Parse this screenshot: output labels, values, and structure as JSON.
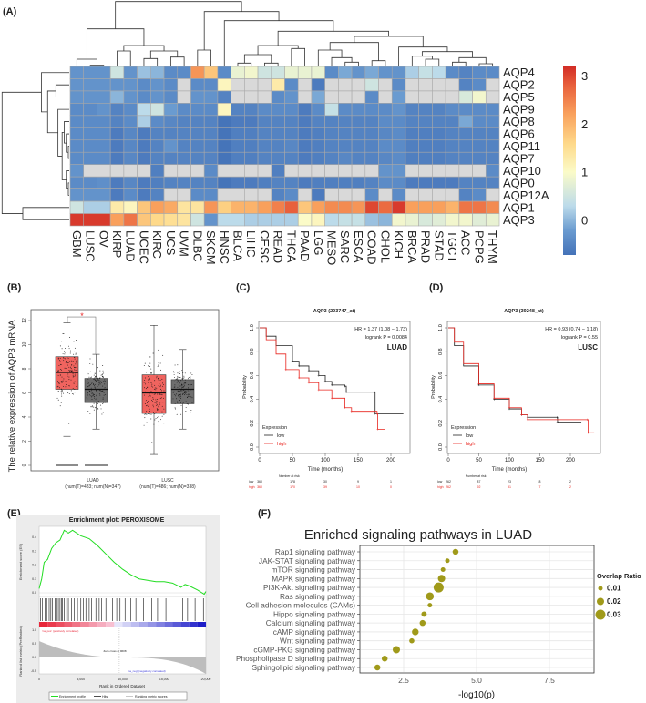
{
  "panels": {
    "A": "(A)",
    "B": "(B)",
    "C": "(C)",
    "D": "(D)",
    "E": "(E)",
    "F": "(F)"
  },
  "chart_data": [
    {
      "type": "heatmap",
      "rows": [
        "AQP4",
        "AQP2",
        "AQP5",
        "AQP9",
        "AQP8",
        "AQP6",
        "AQP11",
        "AQP7",
        "AQP10",
        "AQP0",
        "AQP12A",
        "AQP1",
        "AQP3"
      ],
      "columns": [
        "GBM",
        "LUSC",
        "OV",
        "KIRP",
        "LUAD",
        "UCEC",
        "KIRC",
        "UCS",
        "UVM",
        "DLBC",
        "SKCM",
        "HNSC",
        "BLCA",
        "LIHC",
        "CESC",
        "READ",
        "THCA",
        "PAAD",
        "LGG",
        "MESO",
        "SARC",
        "ESCA",
        "COAD",
        "CHOL",
        "KICH",
        "BRCA",
        "PRAD",
        "STAD",
        "TGCT",
        "ACC",
        "PCPG",
        "THYM"
      ],
      "values": [
        [
          -0.3,
          -0.3,
          -0.3,
          0.5,
          -0.3,
          0.1,
          0,
          -0.4,
          -0.4,
          2.3,
          1.8,
          -0.4,
          0.8,
          0.9,
          0.5,
          0.5,
          0.8,
          0.8,
          0.8,
          -0.4,
          -0.1,
          -0.3,
          -0.1,
          -0.3,
          -0.3,
          0.2,
          0.4,
          0.3,
          -0.4,
          -0.5,
          -0.4,
          -0.4
        ],
        [
          -0.3,
          -0.3,
          -0.3,
          -0.3,
          -0.3,
          -0.4,
          -0.3,
          -0.4,
          null,
          -0.4,
          -0.4,
          1.1,
          null,
          null,
          null,
          1.3,
          -0.4,
          null,
          -0.6,
          null,
          null,
          null,
          0.5,
          null,
          -0.4,
          null,
          null,
          null,
          null,
          -0.5,
          -0.4,
          null
        ],
        [
          -0.3,
          -0.3,
          -0.3,
          0,
          -0.3,
          -0.4,
          -0.3,
          -0.4,
          null,
          -0.3,
          -0.3,
          -0.5,
          null,
          null,
          null,
          -0.4,
          -0.3,
          null,
          -0.1,
          null,
          null,
          null,
          -0.4,
          null,
          -0.2,
          null,
          null,
          null,
          null,
          0.6,
          0.9,
          null
        ],
        [
          -0.4,
          -0.4,
          -0.3,
          -0.5,
          -0.4,
          0.3,
          0.5,
          -0.2,
          -0.4,
          -0.4,
          -0.4,
          1.1,
          -0.5,
          -0.5,
          -0.4,
          -0.4,
          -0.4,
          -0.6,
          -0.4,
          0.4,
          -0.4,
          -0.4,
          -0.4,
          -0.4,
          -0.3,
          -0.5,
          -0.5,
          -0.5,
          -0.4,
          -0.4,
          -0.4,
          -0.4
        ],
        [
          -0.4,
          -0.4,
          -0.4,
          -0.5,
          -0.4,
          0.2,
          -0.4,
          -0.45,
          -0.5,
          -0.5,
          -0.5,
          -0.7,
          -0.6,
          -0.6,
          -0.5,
          -0.5,
          -0.5,
          -0.6,
          -0.5,
          -0.5,
          -0.5,
          -0.5,
          -0.5,
          -0.4,
          -0.4,
          -0.5,
          -0.5,
          -0.5,
          -0.5,
          -0.1,
          -0.4,
          -0.4
        ],
        [
          -0.4,
          -0.4,
          -0.4,
          -0.6,
          -0.45,
          -0.6,
          -0.5,
          -0.5,
          -0.5,
          -0.5,
          -0.5,
          -0.7,
          -0.55,
          -0.55,
          -0.5,
          -0.5,
          -0.5,
          -0.6,
          -0.55,
          -0.5,
          -0.5,
          -0.5,
          -0.5,
          -0.45,
          -0.4,
          -0.55,
          -0.55,
          -0.55,
          -0.5,
          -0.5,
          -0.5,
          -0.5
        ],
        [
          -0.4,
          -0.4,
          -0.4,
          -0.6,
          -0.45,
          -0.6,
          -0.5,
          -0.3,
          -0.5,
          -0.5,
          -0.5,
          -0.7,
          -0.55,
          -0.55,
          -0.5,
          -0.5,
          -0.45,
          -0.6,
          -0.55,
          -0.5,
          -0.5,
          -0.5,
          -0.5,
          -0.4,
          -0.4,
          -0.55,
          -0.55,
          -0.55,
          -0.5,
          -0.5,
          -0.5,
          -0.5
        ],
        [
          -0.4,
          -0.4,
          -0.4,
          -0.6,
          -0.45,
          -0.6,
          -0.5,
          -0.5,
          -0.5,
          -0.5,
          -0.5,
          -0.7,
          -0.55,
          -0.55,
          -0.5,
          -0.5,
          -0.5,
          -0.6,
          -0.55,
          -0.5,
          -0.45,
          -0.5,
          -0.5,
          -0.45,
          -0.4,
          -0.55,
          -0.55,
          -0.55,
          -0.5,
          -0.5,
          -0.5,
          -0.5
        ],
        [
          -0.3,
          null,
          null,
          null,
          null,
          null,
          -0.55,
          null,
          null,
          null,
          -0.4,
          null,
          null,
          null,
          null,
          -0.55,
          null,
          null,
          null,
          null,
          null,
          null,
          null,
          -0.3,
          -0.3,
          null,
          null,
          null,
          null,
          null,
          null,
          -0.4
        ],
        [
          -0.4,
          -0.4,
          -0.35,
          -0.6,
          -0.45,
          -0.6,
          -0.55,
          -0.5,
          -0.5,
          -0.5,
          -0.5,
          -0.7,
          -0.6,
          -0.6,
          -0.55,
          -0.5,
          -0.5,
          -0.6,
          -0.55,
          -0.55,
          -0.55,
          -0.55,
          -0.5,
          -0.4,
          -0.4,
          -0.6,
          -0.6,
          -0.6,
          -0.6,
          -0.5,
          -0.5,
          -0.5
        ],
        [
          -0.3,
          -0.3,
          -0.3,
          -0.6,
          -0.4,
          -0.6,
          -0.5,
          null,
          null,
          -0.4,
          -0.4,
          null,
          null,
          null,
          null,
          -0.5,
          -0.4,
          null,
          -0.6,
          null,
          null,
          null,
          -0.4,
          null,
          -0.4,
          null,
          null,
          null,
          null,
          -0.5,
          -0.4,
          null
        ],
        [
          0.5,
          0.2,
          0.2,
          1.3,
          1.1,
          1.8,
          2.2,
          2.1,
          1.4,
          1.4,
          2.3,
          1.7,
          2.0,
          2.0,
          2.2,
          2.5,
          2.8,
          1.8,
          2.2,
          2.4,
          2.4,
          2.3,
          3.0,
          2.7,
          3.1,
          2.2,
          2.2,
          2.2,
          2.0,
          2.6,
          2.6,
          2.4
        ],
        [
          3.1,
          3.1,
          3.1,
          2.2,
          2.6,
          1.8,
          1.6,
          1.5,
          1.4,
          0.5,
          -0.3,
          0.3,
          0.3,
          0.2,
          0.2,
          0.2,
          0.2,
          1.0,
          1.1,
          0.3,
          0.4,
          0.4,
          0.1,
          0.0,
          0.9,
          0.8,
          0.6,
          0.7,
          0.9,
          0.9,
          0.7,
          0.8
        ]
      ],
      "colorbar_ticks": [
        "0",
        "1",
        "2",
        "3"
      ],
      "colorbar_range": [
        -0.72,
        3.2
      ],
      "missing_color": "#d9d9d9"
    },
    {
      "type": "box",
      "ylabel": "The relative expression of AQP3 mRNA",
      "yticks": [
        "0",
        "2",
        "4",
        "6",
        "8",
        "10",
        "12"
      ],
      "ylim": [
        0,
        12.5
      ],
      "groups": [
        {
          "label": "LUAD",
          "sub": "(num(T)=483; num(N)=347)",
          "boxes": [
            {
              "name": "Tumor",
              "color": "#f0645f",
              "min": 2.4,
              "q1": 6.3,
              "median": 7.7,
              "q3": 9.0,
              "max": 11.8
            },
            {
              "name": "Normal",
              "color": "#6e6e6e",
              "min": 3.0,
              "q1": 5.2,
              "median": 6.3,
              "q3": 7.2,
              "max": 9.2
            }
          ],
          "significance": "*"
        },
        {
          "label": "LUSC",
          "sub": "(num(T)=486; num(N)=338)",
          "boxes": [
            {
              "name": "Tumor",
              "color": "#f0645f",
              "min": 0.9,
              "q1": 4.3,
              "median": 6.0,
              "q3": 7.5,
              "max": 11.6
            },
            {
              "name": "Normal",
              "color": "#6e6e6e",
              "min": 3.0,
              "q1": 5.1,
              "median": 6.3,
              "q3": 7.1,
              "max": 9.6
            }
          ]
        }
      ]
    },
    {
      "type": "line",
      "title": "AQP3 (203747_at)",
      "hr": "HR = 1.37 (1.08 − 1.73)",
      "logrank": "logrank P = 0.0084",
      "cohort": "LUAD",
      "xlabel": "Time (months)",
      "ylabel": "Probability",
      "xticks": [
        "0",
        "50",
        "100",
        "150",
        "200"
      ],
      "yticks": [
        "0.0",
        "0.2",
        "0.4",
        "0.6",
        "0.8",
        "1.0"
      ],
      "legend_title": "Expression",
      "series": [
        {
          "name": "low",
          "color": "#222222",
          "x": [
            0,
            10,
            25,
            50,
            60,
            75,
            90,
            100,
            110,
            130,
            132,
            175,
            176,
            219
          ],
          "y": [
            1,
            0.93,
            0.85,
            0.72,
            0.68,
            0.64,
            0.6,
            0.55,
            0.52,
            0.51,
            0.46,
            0.46,
            0.28,
            0.28
          ]
        },
        {
          "name": "high",
          "color": "#e8251f",
          "x": [
            0,
            10,
            25,
            40,
            60,
            75,
            90,
            110,
            130,
            140,
            179,
            180,
            191
          ],
          "y": [
            1,
            0.9,
            0.78,
            0.65,
            0.58,
            0.54,
            0.48,
            0.41,
            0.33,
            0.3,
            0.28,
            0.15,
            0.15
          ]
        }
      ],
      "risk_title": "Number at risk",
      "risk": [
        {
          "label": "low",
          "values": [
            "360",
            "178",
            "30",
            "9",
            "1"
          ]
        },
        {
          "label": "high",
          "values": [
            "360",
            "170",
            "39",
            "10",
            "0"
          ]
        }
      ]
    },
    {
      "type": "line",
      "title": "AQP3 (39248_at)",
      "hr": "HR = 0.93 (0.74 − 1.18)",
      "logrank": "logrank P = 0.55",
      "cohort": "LUSC",
      "xlabel": "Time (months)",
      "ylabel": "Probability",
      "xticks": [
        "0",
        "50",
        "100",
        "150",
        "200"
      ],
      "yticks": [
        "0.0",
        "0.2",
        "0.4",
        "0.6",
        "0.8",
        "1.0"
      ],
      "legend_title": "Expression",
      "series": [
        {
          "name": "low",
          "color": "#222222",
          "x": [
            0,
            10,
            25,
            50,
            75,
            100,
            120,
            130,
            178,
            179,
            218
          ],
          "y": [
            1,
            0.85,
            0.68,
            0.52,
            0.4,
            0.32,
            0.27,
            0.25,
            0.25,
            0.21,
            0.21
          ]
        },
        {
          "name": "high",
          "color": "#e8251f",
          "x": [
            0,
            10,
            25,
            50,
            75,
            100,
            120,
            130,
            228,
            229,
            239
          ],
          "y": [
            1,
            0.88,
            0.7,
            0.53,
            0.41,
            0.33,
            0.27,
            0.23,
            0.23,
            0.12,
            0.12
          ]
        }
      ],
      "risk_title": "Number at risk",
      "risk": [
        {
          "label": "low",
          "values": [
            "262",
            "87",
            "23",
            "8",
            "2"
          ]
        },
        {
          "label": "high",
          "values": [
            "262",
            "92",
            "31",
            "7",
            "2"
          ]
        }
      ]
    },
    {
      "type": "line",
      "title": "Enrichment plot: PEROXISOME",
      "ylabel_top": "Enrichment score (ES)",
      "ylabel_bottom": "Ranked list metric (PreRanked)",
      "xlabel": "Rank in Ordered Dataset",
      "xticks": [
        "0",
        "5,000",
        "10,000",
        "15,000",
        "20,000"
      ],
      "es_yticks": [
        "0.0",
        "0.1",
        "0.2",
        "0.3",
        "0.4"
      ],
      "metric_yticks": [
        "1.0",
        "0.5",
        "0.0",
        "-0.5"
      ],
      "es_curve": {
        "rank": [
          0,
          300,
          600,
          1000,
          1500,
          2000,
          2500,
          3000,
          3500,
          4000,
          5000,
          6000,
          7000,
          8000,
          9000,
          10000,
          11000,
          12000,
          13000,
          14000,
          15000,
          16000,
          17000,
          17500,
          18000,
          19000,
          19800,
          20000
        ],
        "es": [
          0.03,
          0.1,
          0.22,
          0.24,
          0.32,
          0.36,
          0.38,
          0.45,
          0.43,
          0.45,
          0.41,
          0.39,
          0.34,
          0.28,
          0.22,
          0.17,
          0.13,
          0.1,
          0.09,
          0.08,
          0.08,
          0.07,
          0.04,
          0.06,
          0.05,
          0.02,
          -0.01,
          0.01
        ]
      },
      "hits": [
        150,
        400,
        700,
        900,
        1200,
        1400,
        1600,
        1900,
        2100,
        2300,
        2500,
        2700,
        2800,
        3000,
        3300,
        3500,
        3900,
        4200,
        4600,
        5000,
        5300,
        5600,
        6000,
        6300,
        6800,
        7200,
        7500,
        8000,
        8800,
        9300,
        9700,
        10300,
        11000,
        11600,
        12500,
        13500,
        14200,
        15200,
        17200,
        17800,
        18100,
        18700,
        19700
      ],
      "zero_cross": "Zero cross at 9608",
      "pos_label": "'na_pos' (positively correlated)",
      "neg_label": "'na_neg' (negatively correlated)",
      "legend": [
        "Enrichment profile",
        "Hits",
        "Ranking metric scores"
      ],
      "colors": {
        "curve": "#22dd22",
        "pos": "#e8283a",
        "neg": "#2020c8"
      }
    },
    {
      "type": "scatter",
      "title": "Enriched signaling pathways in LUAD",
      "xlabel": "-log10(p)",
      "xticks": [
        "2.5",
        "5.0",
        "7.5"
      ],
      "xlim": [
        1.0,
        9.1
      ],
      "pathways": [
        "Rap1 signaling pathway",
        "JAK-STAT signaling pathway",
        "mTOR signaling pathway",
        "MAPK signaling pathway",
        "PI3K-Akt signaling pathway",
        "Ras signaling pathway",
        "Cell adhesion molecules (CAMs)",
        "Hippo signaling pathway",
        "Calcium signaling pathway",
        "cAMP signaling pathway",
        "Wnt signaling pathway",
        "cGMP-PKG signaling pathway",
        "Phospholipase D signaling pathway",
        "Sphingolipid signaling pathway"
      ],
      "neg_log10_p": [
        4.28,
        4.0,
        3.85,
        3.8,
        3.7,
        3.4,
        3.4,
        3.2,
        3.15,
        2.9,
        2.78,
        2.25,
        1.85,
        1.6
      ],
      "overlap_ratio": [
        0.015,
        0.01,
        0.01,
        0.02,
        0.03,
        0.022,
        0.01,
        0.013,
        0.015,
        0.018,
        0.012,
        0.02,
        0.015,
        0.015
      ],
      "legend_title": "Overlap Ratio",
      "legend_values": [
        "0.01",
        "0.02",
        "0.03"
      ],
      "color": "#a09a1a"
    }
  ]
}
